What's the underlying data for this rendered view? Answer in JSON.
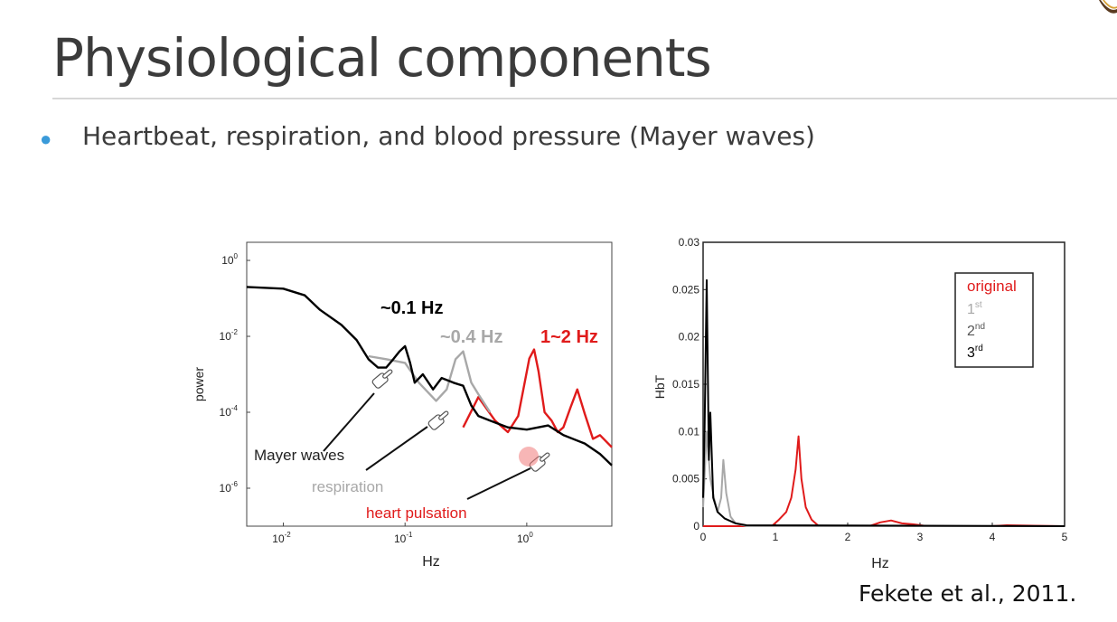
{
  "slide": {
    "title": "Physiological components",
    "bullets": [
      "Heartbeat, respiration, and blood pressure (Mayer waves)"
    ],
    "citation": "Fekete et al., 2011."
  },
  "colors": {
    "bullet": "#3a9ad9",
    "red": "#e01b1b",
    "gray": "#a8a8a8",
    "black": "#000000"
  },
  "chart_data": [
    {
      "type": "line",
      "title": "",
      "xlabel": "Hz",
      "ylabel": "power",
      "xscale": "log",
      "yscale": "log",
      "xlim": [
        0.005,
        5
      ],
      "ylim": [
        1e-07,
        3
      ],
      "x_ticks": [
        {
          "label": "10",
          "exp": "-2",
          "value": 0.01
        },
        {
          "label": "10",
          "exp": "-1",
          "value": 0.1
        },
        {
          "label": "10",
          "exp": "0",
          "value": 1
        }
      ],
      "y_ticks": [
        {
          "label": "10",
          "exp": "0",
          "value": 1
        },
        {
          "label": "10",
          "exp": "-2",
          "value": 0.01
        },
        {
          "label": "10",
          "exp": "-4",
          "value": 0.0001
        },
        {
          "label": "10",
          "exp": "-6",
          "value": 1e-06
        }
      ],
      "series": [
        {
          "name": "heart pulsation",
          "color": "#e01b1b",
          "x": [
            0.3,
            0.4,
            0.55,
            0.7,
            0.85,
            0.95,
            1.05,
            1.15,
            1.25,
            1.4,
            1.6,
            1.8,
            2.0,
            2.3,
            2.6,
            3.0,
            3.5,
            4.0,
            5.0
          ],
          "y": [
            4e-05,
            0.00025,
            6e-05,
            3e-05,
            8e-05,
            0.0005,
            0.0026,
            0.0045,
            0.0012,
            0.0001,
            6e-05,
            3e-05,
            4e-05,
            0.00014,
            0.0004,
            9e-05,
            2e-05,
            2.5e-05,
            1.2e-05
          ]
        },
        {
          "name": "respiration",
          "color": "#a8a8a8",
          "x": [
            0.05,
            0.07,
            0.1,
            0.13,
            0.18,
            0.22,
            0.26,
            0.3,
            0.35,
            0.4,
            0.5
          ],
          "y": [
            0.003,
            0.0025,
            0.002,
            0.0006,
            0.0002,
            0.0004,
            0.0025,
            0.004,
            0.0006,
            0.0003,
            0.0001
          ]
        },
        {
          "name": "Mayer waves",
          "color": "#000000",
          "x": [
            0.005,
            0.01,
            0.015,
            0.02,
            0.03,
            0.04,
            0.05,
            0.06,
            0.07,
            0.08,
            0.09,
            0.1,
            0.11,
            0.12,
            0.14,
            0.17,
            0.2,
            0.25,
            0.3,
            0.35,
            0.4,
            0.5,
            0.7,
            1.0,
            1.5,
            2.0,
            3.0,
            4.0,
            5.0
          ],
          "y": [
            0.2,
            0.18,
            0.12,
            0.05,
            0.02,
            0.008,
            0.0025,
            0.0015,
            0.0015,
            0.0025,
            0.004,
            0.0055,
            0.002,
            0.0006,
            0.001,
            0.0004,
            0.0008,
            0.0006,
            0.0005,
            0.00015,
            8e-05,
            6e-05,
            4e-05,
            3.5e-05,
            4.5e-05,
            2.5e-05,
            1.5e-05,
            8e-06,
            4e-06
          ]
        }
      ],
      "annotations": {
        "peak_labels": [
          {
            "text": "~0.1 Hz",
            "color": "#000000"
          },
          {
            "text": "~0.4 Hz",
            "color": "#a8a8a8"
          },
          {
            "text": "1~2 Hz",
            "color": "#e01b1b"
          }
        ],
        "component_labels": [
          {
            "text": "Mayer waves",
            "color": "#222222"
          },
          {
            "text": "respiration",
            "color": "#a8a8a8"
          },
          {
            "text": "heart pulsation",
            "color": "#e01b1b"
          }
        ]
      }
    },
    {
      "type": "line",
      "title": "",
      "xlabel": "Hz",
      "ylabel": "HbT",
      "xlim": [
        0,
        5
      ],
      "ylim": [
        0,
        0.03
      ],
      "x_ticks": [
        "0",
        "1",
        "2",
        "3",
        "4",
        "5"
      ],
      "y_ticks": [
        "0",
        "0.005",
        "0.01",
        "0.015",
        "0.02",
        "0.025",
        "0.03"
      ],
      "legend": {
        "placement": "top-right",
        "entries": [
          {
            "label": "original",
            "sup": "",
            "color": "#e01b1b"
          },
          {
            "label": "1",
            "sup": "st",
            "color": "#a8a8a8"
          },
          {
            "label": "2",
            "sup": "nd",
            "color": "#555555"
          },
          {
            "label": "3",
            "sup": "rd",
            "color": "#000000"
          }
        ]
      },
      "series": [
        {
          "name": "original",
          "color": "#e01b1b",
          "x": [
            0,
            0.5,
            0.95,
            1.05,
            1.15,
            1.22,
            1.28,
            1.32,
            1.36,
            1.42,
            1.5,
            1.6,
            2.0,
            2.3,
            2.45,
            2.6,
            2.75,
            2.9,
            3.1,
            4.0,
            4.2,
            5.0
          ],
          "y": [
            0,
            0,
            0,
            0.0007,
            0.0015,
            0.003,
            0.006,
            0.0095,
            0.005,
            0.002,
            0.0007,
            0,
            0,
            0,
            0.0004,
            0.0006,
            0.0003,
            0.0002,
            0,
            0,
            0.0001,
            0
          ]
        },
        {
          "name": "1st",
          "color": "#a8a8a8",
          "x": [
            0,
            0.05,
            0.1,
            0.15,
            0.2,
            0.25,
            0.28,
            0.32,
            0.38,
            0.45,
            0.6,
            5.0
          ],
          "y": [
            0.002,
            0.01,
            0.005,
            0.003,
            0.0015,
            0.003,
            0.007,
            0.0035,
            0.001,
            0.0003,
            0,
            0
          ]
        },
        {
          "name": "3rd",
          "color": "#000000",
          "x": [
            0,
            0.02,
            0.05,
            0.08,
            0.1,
            0.14,
            0.2,
            0.3,
            0.45,
            0.6,
            5.0
          ],
          "y": [
            0.003,
            0.01,
            0.026,
            0.007,
            0.012,
            0.003,
            0.0015,
            0.0008,
            0.0003,
            0.0001,
            0
          ]
        }
      ]
    }
  ]
}
